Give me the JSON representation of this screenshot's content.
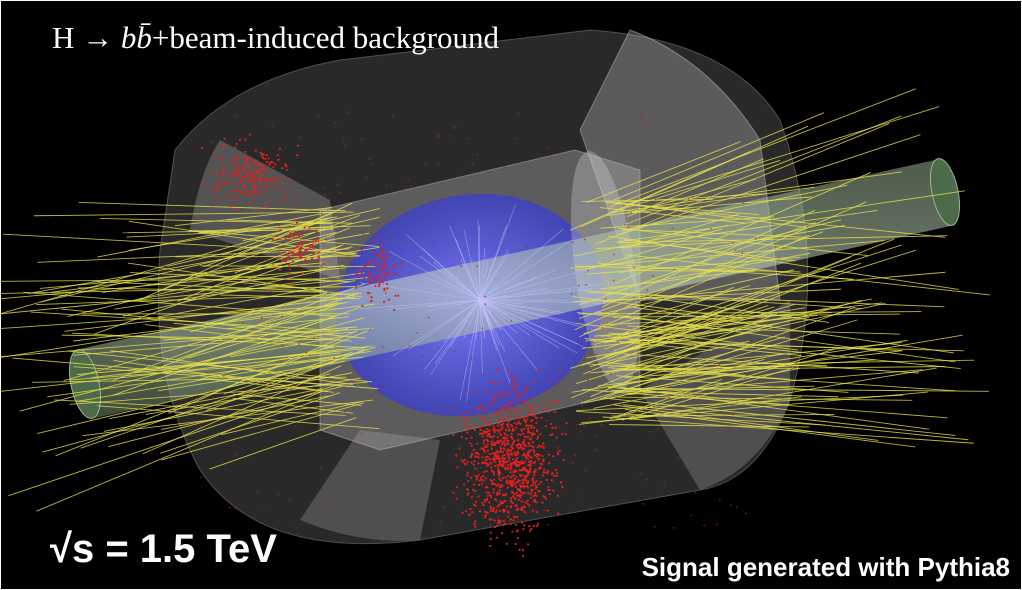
{
  "title": {
    "prefix": "H → ",
    "particles": "bb̄",
    "suffix": "+beam-induced background"
  },
  "energy_label": "√s = 1.5 TeV",
  "credit": "Signal generated with Pythia8"
}
